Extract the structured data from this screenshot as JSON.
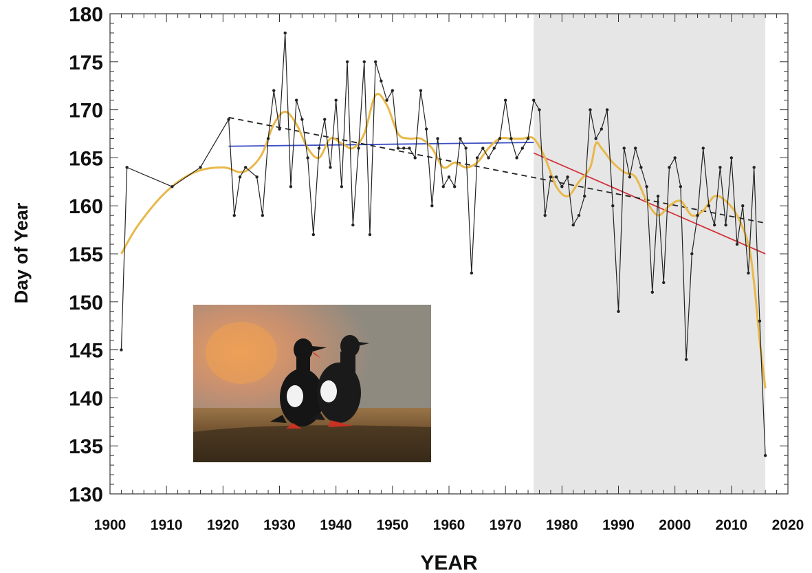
{
  "chart_data": {
    "type": "line",
    "title": "",
    "xlabel": "YEAR",
    "ylabel": "Day of Year",
    "xlim": [
      1900,
      2020
    ],
    "ylim": [
      130,
      180
    ],
    "xticks": [
      1900,
      1910,
      1920,
      1930,
      1940,
      1950,
      1960,
      1970,
      1980,
      1990,
      2000,
      2010,
      2020
    ],
    "yticks": [
      130,
      135,
      140,
      145,
      150,
      155,
      160,
      165,
      170,
      175,
      180
    ],
    "grid": false,
    "shaded_region": {
      "x_start": 1975,
      "x_end": 2016,
      "color": "#e6e6e6"
    },
    "series": [
      {
        "style": "line-with-points",
        "color": "#222222",
        "points": [
          [
            1902,
            145
          ],
          [
            1903,
            164
          ],
          [
            1911,
            162
          ],
          [
            1916,
            164
          ],
          [
            1921,
            169
          ],
          [
            1922,
            159
          ],
          [
            1923,
            163
          ],
          [
            1924,
            164
          ],
          [
            1926,
            163
          ],
          [
            1927,
            159
          ],
          [
            1928,
            167
          ],
          [
            1929,
            172
          ],
          [
            1930,
            168
          ],
          [
            1931,
            178
          ],
          [
            1932,
            162
          ],
          [
            1933,
            171
          ],
          [
            1934,
            169
          ],
          [
            1935,
            165
          ],
          [
            1936,
            157
          ],
          [
            1937,
            166
          ],
          [
            1938,
            169
          ],
          [
            1939,
            164
          ],
          [
            1940,
            171
          ],
          [
            1941,
            162
          ],
          [
            1942,
            175
          ],
          [
            1943,
            158
          ],
          [
            1944,
            166
          ],
          [
            1945,
            175
          ],
          [
            1946,
            157
          ],
          [
            1947,
            175
          ],
          [
            1948,
            173
          ],
          [
            1949,
            171
          ],
          [
            1950,
            172
          ],
          [
            1951,
            166
          ],
          [
            1952,
            166
          ],
          [
            1953,
            166
          ],
          [
            1954,
            165
          ],
          [
            1955,
            172
          ],
          [
            1956,
            168
          ],
          [
            1957,
            160
          ],
          [
            1958,
            167
          ],
          [
            1959,
            162
          ],
          [
            1960,
            163
          ],
          [
            1961,
            162
          ],
          [
            1962,
            167
          ],
          [
            1963,
            166
          ],
          [
            1964,
            153
          ],
          [
            1965,
            165
          ],
          [
            1966,
            166
          ],
          [
            1967,
            165
          ],
          [
            1968,
            166
          ],
          [
            1969,
            167
          ],
          [
            1970,
            171
          ],
          [
            1971,
            167
          ],
          [
            1972,
            165
          ],
          [
            1973,
            166
          ],
          [
            1974,
            167
          ],
          [
            1975,
            171
          ],
          [
            1976,
            170
          ],
          [
            1977,
            159
          ],
          [
            1978,
            163
          ],
          [
            1979,
            163
          ],
          [
            1980,
            162
          ],
          [
            1981,
            163
          ],
          [
            1982,
            158
          ],
          [
            1983,
            159
          ],
          [
            1984,
            161
          ],
          [
            1985,
            170
          ],
          [
            1986,
            167
          ],
          [
            1987,
            168
          ],
          [
            1988,
            170
          ],
          [
            1989,
            160
          ],
          [
            1990,
            149
          ],
          [
            1991,
            166
          ],
          [
            1992,
            163
          ],
          [
            1993,
            166
          ],
          [
            1994,
            164
          ],
          [
            1995,
            162
          ],
          [
            1996,
            151
          ],
          [
            1997,
            161
          ],
          [
            1998,
            152
          ],
          [
            1999,
            164
          ],
          [
            2000,
            165
          ],
          [
            2001,
            162
          ],
          [
            2002,
            144
          ],
          [
            2003,
            155
          ],
          [
            2004,
            159
          ],
          [
            2005,
            166
          ],
          [
            2006,
            160
          ],
          [
            2007,
            158
          ],
          [
            2008,
            164
          ],
          [
            2009,
            158
          ],
          [
            2010,
            165
          ],
          [
            2011,
            156
          ],
          [
            2012,
            160
          ],
          [
            2013,
            153
          ],
          [
            2014,
            164
          ],
          [
            2015,
            148
          ],
          [
            2016,
            134
          ]
        ]
      },
      {
        "style": "smooth",
        "color": "#e8b84a",
        "points": [
          [
            1902,
            155
          ],
          [
            1905,
            158
          ],
          [
            1910,
            161.5
          ],
          [
            1915,
            163.5
          ],
          [
            1920,
            164
          ],
          [
            1923,
            163.5
          ],
          [
            1925,
            164
          ],
          [
            1927,
            165.5
          ],
          [
            1929,
            168.5
          ],
          [
            1931,
            169.8
          ],
          [
            1933,
            168.5
          ],
          [
            1935,
            166
          ],
          [
            1937,
            165
          ],
          [
            1939,
            167
          ],
          [
            1941,
            166.5
          ],
          [
            1943,
            166
          ],
          [
            1945,
            167.5
          ],
          [
            1947,
            171.5
          ],
          [
            1949,
            170.5
          ],
          [
            1951,
            167.5
          ],
          [
            1953,
            167
          ],
          [
            1955,
            167
          ],
          [
            1957,
            166
          ],
          [
            1959,
            164
          ],
          [
            1961,
            164.5
          ],
          [
            1963,
            164
          ],
          [
            1965,
            164.5
          ],
          [
            1967,
            166
          ],
          [
            1969,
            167
          ],
          [
            1971,
            167
          ],
          [
            1973,
            167
          ],
          [
            1975,
            167
          ],
          [
            1977,
            165
          ],
          [
            1979,
            162
          ],
          [
            1981,
            161
          ],
          [
            1983,
            162.5
          ],
          [
            1985,
            164
          ],
          [
            1986,
            166.5
          ],
          [
            1987,
            166
          ],
          [
            1989,
            164.5
          ],
          [
            1991,
            163.5
          ],
          [
            1993,
            163
          ],
          [
            1995,
            160.5
          ],
          [
            1997,
            159
          ],
          [
            1999,
            160
          ],
          [
            2001,
            160.5
          ],
          [
            2003,
            159
          ],
          [
            2005,
            159.5
          ],
          [
            2007,
            161
          ],
          [
            2009,
            160.5
          ],
          [
            2011,
            159
          ],
          [
            2013,
            156
          ],
          [
            2014,
            152
          ],
          [
            2015,
            146
          ],
          [
            2016,
            141
          ]
        ]
      }
    ],
    "trend_lines": [
      {
        "color": "#3b4fc4",
        "dash": "solid",
        "x": [
          1921,
          1975
        ],
        "y": [
          166.2,
          166.6
        ]
      },
      {
        "color": "#d2343c",
        "dash": "solid",
        "x": [
          1975,
          2016
        ],
        "y": [
          165.5,
          155
        ]
      },
      {
        "color": "#222222",
        "dash": "dashed",
        "x": [
          1921,
          2016
        ],
        "y": [
          169.2,
          158.2
        ]
      }
    ],
    "inset_image": {
      "subject": "photo-of-two-black-guillemots"
    }
  }
}
